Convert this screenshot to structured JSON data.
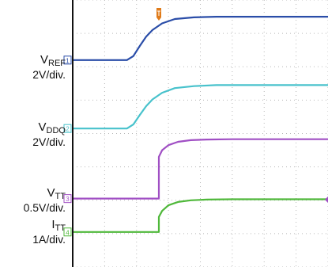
{
  "chart_data": {
    "type": "line",
    "title": "",
    "xlabel": "",
    "ylabel": "",
    "grid": true,
    "grid_divisions": {
      "x": 8,
      "y": 8
    },
    "x_range_div": [
      0,
      8
    ],
    "y_range_div": [
      -4,
      4
    ],
    "trigger_marker_x_div": 2.7,
    "colors": {
      "background": "#ffffff",
      "grid": "#b8b8b8",
      "ch1": "#2a4da8",
      "ch2": "#48c2cc",
      "ch3": "#a04fc4",
      "ch4": "#4fb83a",
      "trigger": "#e07b1a"
    },
    "series": [
      {
        "name": "V_REF",
        "channel": "1",
        "scale": "2V/div.",
        "ground_div": 2.2,
        "x": [
          0,
          1.7,
          1.9,
          2.1,
          2.3,
          2.5,
          2.8,
          3.2,
          3.8,
          4.5,
          5.5,
          8
        ],
        "y": [
          2.2,
          2.2,
          2.32,
          2.62,
          2.9,
          3.1,
          3.3,
          3.43,
          3.48,
          3.5,
          3.5,
          3.5
        ]
      },
      {
        "name": "V_DDQ",
        "channel": "2",
        "scale": "2V/div.",
        "ground_div": 0.15,
        "x": [
          0,
          1.7,
          1.9,
          2.1,
          2.3,
          2.5,
          2.8,
          3.2,
          3.8,
          4.5,
          5.5,
          8
        ],
        "y": [
          0.15,
          0.15,
          0.27,
          0.55,
          0.82,
          1.02,
          1.22,
          1.36,
          1.42,
          1.45,
          1.45,
          1.45
        ]
      },
      {
        "name": "V_TT",
        "channel": "3",
        "scale": "0.5V/div.",
        "ground_div": -1.95,
        "x": [
          0,
          2.7,
          2.7,
          2.8,
          3.0,
          3.3,
          3.7,
          4.2,
          5.0,
          6.0,
          8
        ],
        "y": [
          -1.95,
          -1.95,
          -0.7,
          -0.5,
          -0.35,
          -0.25,
          -0.2,
          -0.18,
          -0.17,
          -0.17,
          -0.17
        ]
      },
      {
        "name": "I_TT",
        "channel": "4",
        "scale": "1A/div.",
        "ground_div": -2.95,
        "x": [
          0,
          2.7,
          2.7,
          2.8,
          3.0,
          3.3,
          3.7,
          4.2,
          5.0,
          6.0,
          8
        ],
        "y": [
          -2.95,
          -2.95,
          -2.5,
          -2.32,
          -2.15,
          -2.05,
          -2.0,
          -1.98,
          -1.97,
          -1.97,
          -1.97
        ]
      }
    ]
  }
}
